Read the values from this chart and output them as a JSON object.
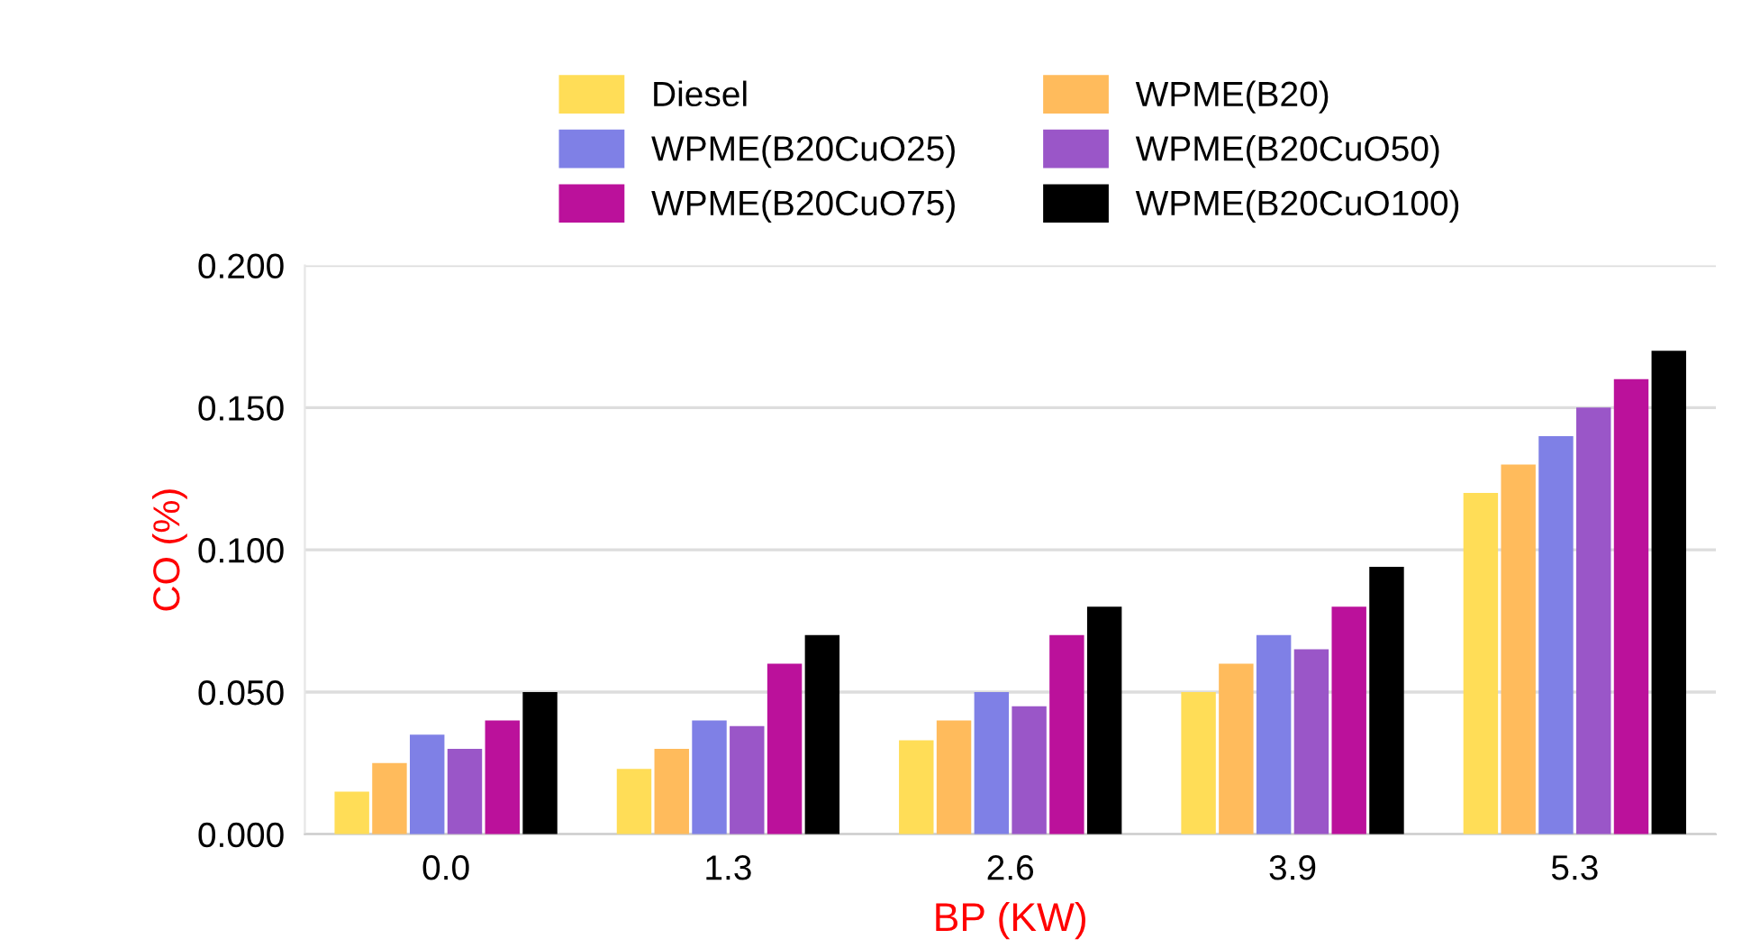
{
  "chart_data": {
    "type": "bar",
    "xlabel": "BP (KW)",
    "ylabel": "CO (%)",
    "categories": [
      "0.0",
      "1.3",
      "2.6",
      "3.9",
      "5.3"
    ],
    "series": [
      {
        "name": "Diesel",
        "color": "#ffdd57",
        "values": [
          0.015,
          0.023,
          0.033,
          0.05,
          0.12
        ]
      },
      {
        "name": "WPME(B20)",
        "color": "#ffbb5c",
        "values": [
          0.025,
          0.03,
          0.04,
          0.06,
          0.13
        ]
      },
      {
        "name": "WPME(B20CuO25)",
        "color": "#7f80e6",
        "values": [
          0.035,
          0.04,
          0.05,
          0.07,
          0.14
        ]
      },
      {
        "name": "WPME(B20CuO50)",
        "color": "#9a56c8",
        "values": [
          0.03,
          0.038,
          0.045,
          0.065,
          0.15
        ]
      },
      {
        "name": "WPME(B20CuO75)",
        "color": "#bb119b",
        "values": [
          0.04,
          0.06,
          0.07,
          0.08,
          0.16
        ]
      },
      {
        "name": "WPME(B20CuO100)",
        "color": "#000000",
        "values": [
          0.05,
          0.07,
          0.08,
          0.094,
          0.17
        ]
      }
    ],
    "ylim": [
      0,
      0.2
    ],
    "yticks": [
      {
        "value": 0,
        "label": "0.000"
      },
      {
        "value": 0.05,
        "label": "0.050"
      },
      {
        "value": 0.1,
        "label": "0.100"
      },
      {
        "value": 0.15,
        "label": "0.150"
      },
      {
        "value": 0.2,
        "label": "0.200"
      }
    ],
    "grid": "y",
    "legend": "top"
  }
}
